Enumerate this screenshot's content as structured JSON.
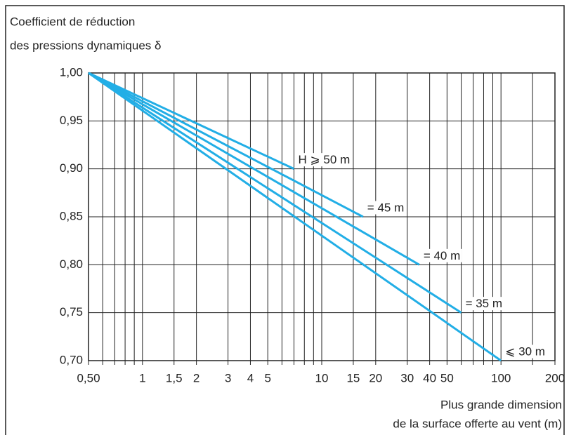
{
  "chart_data": {
    "type": "line",
    "xscale": "log",
    "ylabel": [
      "Coefficient de réduction",
      "des pressions dynamiques δ"
    ],
    "xlabel": [
      "Plus grande dimension",
      "de la surface offerte au vent (m)"
    ],
    "xlim": [
      0.5,
      200
    ],
    "xticks": [
      {
        "value": 0.5,
        "label": "0,50"
      },
      1,
      {
        "value": 1.5,
        "label": "1,5"
      },
      2,
      3,
      4,
      5,
      10,
      15,
      20,
      30,
      40,
      50,
      100,
      200
    ],
    "xminor": [
      0.6,
      0.7,
      0.8,
      0.9,
      6,
      7,
      8,
      9,
      60,
      70,
      80,
      90,
      150
    ],
    "ylim": [
      0.7,
      1.0
    ],
    "yticks": [
      {
        "value": 0.7,
        "label": "0,70"
      },
      {
        "value": 0.75,
        "label": "0,75"
      },
      {
        "value": 0.8,
        "label": "0,80"
      },
      {
        "value": 0.85,
        "label": "0,85"
      },
      {
        "value": 0.9,
        "label": "0,90"
      },
      {
        "value": 0.95,
        "label": "0,95"
      },
      {
        "value": 1.0,
        "label": "1,00"
      }
    ],
    "grid": true,
    "series": [
      {
        "name": "H ⩾ 50 m",
        "color": "#22aee6",
        "x": [
          0.5,
          7
        ],
        "values": [
          1.0,
          0.9
        ]
      },
      {
        "name": "= 45 m",
        "color": "#22aee6",
        "x": [
          0.5,
          17
        ],
        "values": [
          1.0,
          0.85
        ]
      },
      {
        "name": "= 40 m",
        "color": "#22aee6",
        "x": [
          0.5,
          35
        ],
        "values": [
          1.0,
          0.8
        ]
      },
      {
        "name": "= 35 m",
        "color": "#22aee6",
        "x": [
          0.5,
          60
        ],
        "values": [
          1.0,
          0.75
        ]
      },
      {
        "name": "⩽ 30 m",
        "color": "#22aee6",
        "x": [
          0.5,
          100
        ],
        "values": [
          1.0,
          0.7
        ]
      }
    ]
  }
}
